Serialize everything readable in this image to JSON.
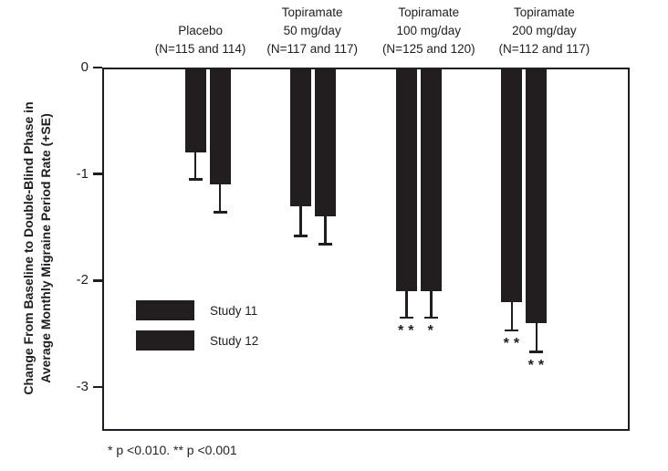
{
  "chart_data": {
    "type": "bar",
    "orientation": "vertical-downward",
    "title": "",
    "ylabel_lines": [
      "Change From Baseline to Double-Blind Phase in",
      "Average Monthly Migraine Period Rate (+SE)"
    ],
    "ylabel": "Change From Baseline to Double-Blind Phase in Average Monthly Migraine Period Rate (+SE)",
    "xlabel": "",
    "ylim": [
      -3.4,
      0
    ],
    "yticks": [
      0,
      -1,
      -2,
      -3
    ],
    "grid": false,
    "bar_color": "#221d1f",
    "legend_position": "inside lower-left",
    "groups": [
      {
        "id": "placebo",
        "label_lines": [
          "Placebo",
          "(N=115 and 114)"
        ]
      },
      {
        "id": "topiramate-50",
        "label_lines": [
          "Topiramate",
          "50 mg/day",
          "(N=117 and 117)"
        ]
      },
      {
        "id": "topiramate-100",
        "label_lines": [
          "Topiramate",
          "100 mg/day",
          "(N=125 and 120)"
        ]
      },
      {
        "id": "topiramate-200",
        "label_lines": [
          "Topiramate",
          "200 mg/day",
          "(N=112 and 117)"
        ]
      }
    ],
    "series": [
      {
        "name": "Study 11",
        "values": [
          -0.8,
          -1.3,
          -2.1,
          -2.2
        ],
        "se": [
          0.25,
          0.28,
          0.25,
          0.27
        ],
        "significance": [
          "",
          "",
          "**",
          "**"
        ]
      },
      {
        "name": "Study 12",
        "values": [
          -1.1,
          -1.4,
          -2.1,
          -2.4
        ],
        "se": [
          0.26,
          0.26,
          0.25,
          0.27
        ],
        "significance": [
          "",
          "",
          "*",
          "**"
        ]
      }
    ],
    "footnote": "* p <0.010. ** p <0.001"
  }
}
